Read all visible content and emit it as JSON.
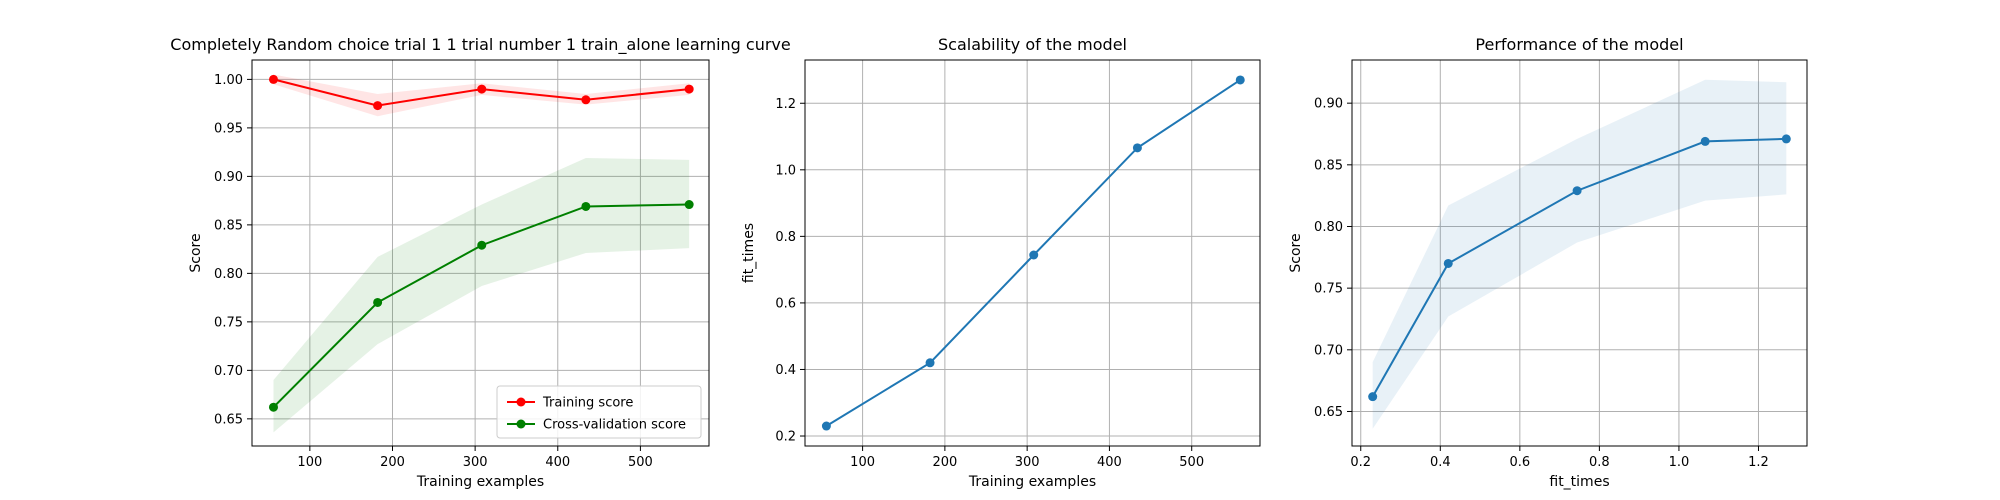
{
  "chart_data": [
    {
      "type": "line",
      "title": "Completely Random choice trial 1 1 trial number 1 train_alone learning curve",
      "xlabel": "Training examples",
      "ylabel": "Score",
      "xlim": [
        30,
        583
      ],
      "ylim": [
        0.622,
        1.02
      ],
      "xticks": [
        100,
        200,
        300,
        400,
        500
      ],
      "yticks": [
        0.65,
        0.7,
        0.75,
        0.8,
        0.85,
        0.9,
        0.95,
        1.0
      ],
      "grid": true,
      "legend": "lower-right",
      "series": [
        {
          "name": "Training score",
          "color": "#ff0000",
          "x": [
            56,
            182,
            308,
            434,
            559
          ],
          "values": [
            1.0,
            0.973,
            0.99,
            0.979,
            0.99
          ],
          "band_lower": [
            0.995,
            0.962,
            0.984,
            0.974,
            0.984
          ],
          "band_upper": [
            1.005,
            0.985,
            0.996,
            0.985,
            0.996
          ]
        },
        {
          "name": "Cross-validation score",
          "color": "#008000",
          "x": [
            56,
            182,
            308,
            434,
            559
          ],
          "values": [
            0.662,
            0.77,
            0.829,
            0.869,
            0.871
          ],
          "band_lower": [
            0.636,
            0.727,
            0.787,
            0.821,
            0.826
          ],
          "band_upper": [
            0.69,
            0.817,
            0.871,
            0.919,
            0.917
          ]
        }
      ]
    },
    {
      "type": "line",
      "title": "Scalability of the model",
      "xlabel": "Training examples",
      "ylabel": "fit_times",
      "xlim": [
        30,
        583
      ],
      "ylim": [
        0.17,
        1.33
      ],
      "xticks": [
        100,
        200,
        300,
        400,
        500
      ],
      "yticks": [
        0.2,
        0.4,
        0.6,
        0.8,
        1.0,
        1.2
      ],
      "grid": true,
      "series": [
        {
          "color": "#1f77b4",
          "x": [
            56,
            182,
            308,
            434,
            559
          ],
          "values": [
            0.23,
            0.42,
            0.744,
            1.066,
            1.27
          ],
          "band_lower": [
            0.229,
            0.419,
            0.742,
            1.063,
            1.267
          ],
          "band_upper": [
            0.231,
            0.421,
            0.746,
            1.069,
            1.273
          ]
        }
      ]
    },
    {
      "type": "line",
      "title": "Performance of the model",
      "xlabel": "fit_times",
      "ylabel": "Score",
      "xlim": [
        0.178,
        1.322
      ],
      "ylim": [
        0.622,
        0.935
      ],
      "xticks": [
        0.2,
        0.4,
        0.6,
        0.8,
        1.0,
        1.2
      ],
      "yticks": [
        0.65,
        0.7,
        0.75,
        0.8,
        0.85,
        0.9
      ],
      "grid": true,
      "series": [
        {
          "color": "#1f77b4",
          "x": [
            0.23,
            0.42,
            0.744,
            1.066,
            1.27
          ],
          "values": [
            0.662,
            0.77,
            0.829,
            0.869,
            0.871
          ],
          "band_lower": [
            0.636,
            0.727,
            0.787,
            0.821,
            0.826
          ],
          "band_upper": [
            0.69,
            0.817,
            0.871,
            0.919,
            0.917
          ]
        }
      ]
    }
  ]
}
